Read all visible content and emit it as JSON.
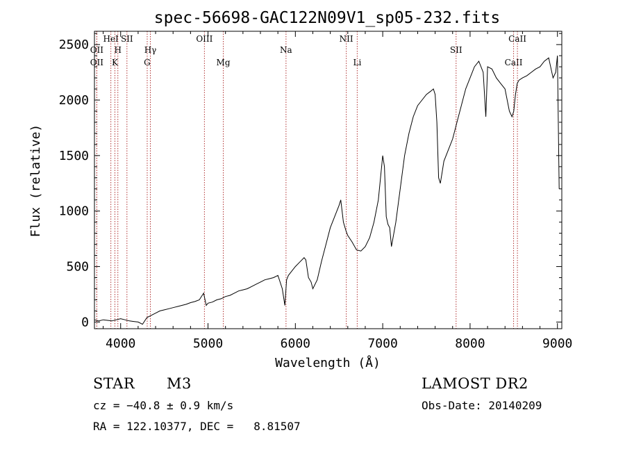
{
  "chart_data": {
    "type": "line",
    "title": "spec-56698-GAC122N09V1_sp05-232.fits",
    "xlabel": "Wavelength (Å)",
    "ylabel": "Flux (relative)",
    "xlim": [
      3700,
      9050
    ],
    "ylim": [
      -60,
      2620
    ],
    "xticks": [
      4000,
      5000,
      6000,
      7000,
      8000,
      9000
    ],
    "yticks": [
      0,
      500,
      1000,
      1500,
      2000,
      2500
    ],
    "grid": false,
    "series": [
      {
        "x": [
          3700,
          3750,
          3800,
          3850,
          3900,
          3950,
          4000,
          4050,
          4100,
          4150,
          4200,
          4250,
          4300,
          4350,
          4400,
          4450,
          4500,
          4550,
          4600,
          4650,
          4700,
          4750,
          4800,
          4850,
          4900,
          4950,
          4980,
          5000,
          5050,
          5100,
          5150,
          5200,
          5250,
          5300,
          5350,
          5400,
          5450,
          5500,
          5550,
          5600,
          5650,
          5700,
          5750,
          5800,
          5850,
          5880,
          5900,
          5920,
          5950,
          6000,
          6050,
          6100,
          6120,
          6150,
          6180,
          6200,
          6250,
          6300,
          6350,
          6400,
          6450,
          6500,
          6520,
          6550,
          6580,
          6600,
          6650,
          6700,
          6750,
          6800,
          6850,
          6900,
          6950,
          7000,
          7020,
          7040,
          7060,
          7080,
          7100,
          7150,
          7200,
          7250,
          7300,
          7350,
          7400,
          7450,
          7500,
          7550,
          7580,
          7600,
          7620,
          7640,
          7660,
          7680,
          7700,
          7750,
          7800,
          7850,
          7900,
          7950,
          8000,
          8050,
          8100,
          8150,
          8180,
          8200,
          8250,
          8300,
          8350,
          8400,
          8450,
          8480,
          8500,
          8520,
          8540,
          8560,
          8600,
          8650,
          8700,
          8750,
          8800,
          8850,
          8900,
          8950,
          8980,
          9000,
          9020
        ],
        "y": [
          20,
          10,
          20,
          15,
          10,
          20,
          30,
          20,
          10,
          5,
          0,
          -20,
          40,
          60,
          80,
          100,
          110,
          120,
          130,
          140,
          150,
          160,
          175,
          185,
          200,
          260,
          150,
          170,
          180,
          200,
          210,
          230,
          240,
          260,
          280,
          290,
          300,
          320,
          340,
          360,
          380,
          390,
          400,
          420,
          300,
          150,
          380,
          420,
          450,
          500,
          540,
          580,
          560,
          400,
          360,
          300,
          380,
          550,
          700,
          850,
          950,
          1050,
          1100,
          900,
          820,
          780,
          720,
          650,
          640,
          680,
          760,
          900,
          1100,
          1500,
          1400,
          950,
          880,
          850,
          680,
          900,
          1200,
          1500,
          1700,
          1850,
          1950,
          2000,
          2050,
          2080,
          2100,
          2050,
          1800,
          1300,
          1250,
          1350,
          1450,
          1550,
          1650,
          1800,
          1950,
          2100,
          2200,
          2300,
          2350,
          2250,
          1850,
          2300,
          2280,
          2200,
          2150,
          2100,
          1900,
          1850,
          1900,
          2050,
          2150,
          2180,
          2200,
          2220,
          2250,
          2280,
          2300,
          2350,
          2380,
          2200,
          2250,
          2400,
          1200
        ]
      }
    ],
    "line_markers": [
      {
        "label": "OII",
        "wave": 3727,
        "row": 3
      },
      {
        "label": "OII",
        "wave": 3727,
        "row": 4
      },
      {
        "label": "HeI",
        "wave": 3888,
        "row": 1
      },
      {
        "label": "K",
        "wave": 3934,
        "row": 4
      },
      {
        "label": "H",
        "wave": 3968,
        "row": 3
      },
      {
        "label": "SII",
        "wave": 4072,
        "row": 1
      },
      {
        "label": "G",
        "wave": 4304,
        "row": 4
      },
      {
        "label": "Hγ",
        "wave": 4340,
        "row": 3
      },
      {
        "label": "OIII",
        "wave": 4959,
        "row": 1
      },
      {
        "label": "Mg",
        "wave": 5175,
        "row": 4
      },
      {
        "label": "Na",
        "wave": 5893,
        "row": 3
      },
      {
        "label": "NII",
        "wave": 6583,
        "row": 1
      },
      {
        "label": "Li",
        "wave": 6708,
        "row": 4
      },
      {
        "label": "SII",
        "wave": 7840,
        "row": 3
      },
      {
        "label": "CaII",
        "wave": 8498,
        "row": 4
      },
      {
        "label": "CaII",
        "wave": 8542,
        "row": 1
      }
    ]
  },
  "info": {
    "object_class": "STAR",
    "subclass": "M3",
    "survey": "LAMOST DR2",
    "cz": "cz = −40.8 ± 0.9 km/s",
    "obs_date": "Obs-Date: 20140209",
    "radec": "RA = 122.10377, DEC =   8.81507"
  }
}
